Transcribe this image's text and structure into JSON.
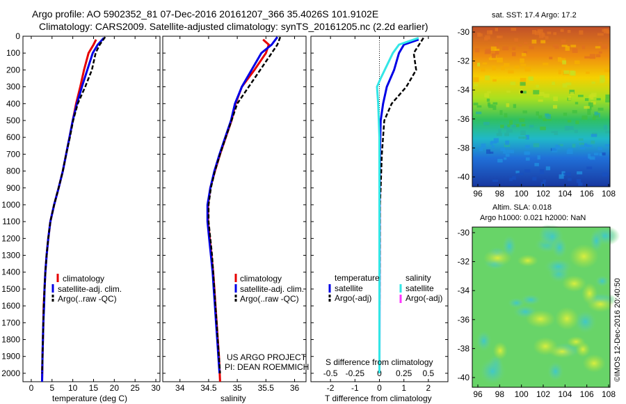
{
  "header": {
    "line1": "Argo profile: AO 5902352_81 07-Dec-2016 20161207_366 35.4026S 101.9102E",
    "line2": "Climatology: CARS2009. Satellite-adjusted climatology: synTS_20161205.nc (2.2d earlier)"
  },
  "colors": {
    "climatology": "#e60000",
    "satellite": "#0000e6",
    "argo": "#000000",
    "salinity_satellite": "#33e6e6",
    "salinity_argo": "#ff33ff"
  },
  "depth_axis": {
    "ticks": [
      "0",
      "100",
      "200",
      "300",
      "400",
      "500",
      "600",
      "700",
      "800",
      "900",
      "1000",
      "1100",
      "1200",
      "1300",
      "1400",
      "1500",
      "1600",
      "1700",
      "1800",
      "1900",
      "2000"
    ],
    "range": [
      0,
      2050
    ]
  },
  "chart_data": [
    {
      "type": "line",
      "xlabel": "temperature (deg C)",
      "xlim": [
        -2,
        31
      ],
      "xticks": [
        "0",
        "5",
        "10",
        "15",
        "20",
        "25",
        "30"
      ],
      "ylim": [
        0,
        2050
      ],
      "legend": [
        "climatology",
        "satellite-adj. clim.",
        "Argo(..raw -QC)"
      ],
      "series": [
        {
          "name": "climatology",
          "style": "solid",
          "color": "#e60000",
          "points": [
            [
              15.6,
              20
            ],
            [
              15,
              50
            ],
            [
              13.8,
              100
            ],
            [
              12.7,
              200
            ],
            [
              11.8,
              300
            ],
            [
              10.8,
              400
            ],
            [
              10,
              500
            ],
            [
              9.2,
              600
            ],
            [
              8.4,
              700
            ],
            [
              7.6,
              800
            ],
            [
              6.6,
              900
            ],
            [
              5.5,
              1000
            ],
            [
              4.6,
              1100
            ],
            [
              4.1,
              1200
            ],
            [
              3.7,
              1300
            ],
            [
              3.4,
              1400
            ],
            [
              3.2,
              1500
            ],
            [
              3,
              1600
            ],
            [
              2.9,
              1700
            ],
            [
              2.8,
              1800
            ],
            [
              2.7,
              1900
            ],
            [
              2.6,
              2050
            ]
          ]
        },
        {
          "name": "satellite-adj. clim.",
          "style": "solid",
          "color": "#0000e6",
          "points": [
            [
              17.5,
              10
            ],
            [
              16,
              50
            ],
            [
              14.8,
              100
            ],
            [
              13.5,
              200
            ],
            [
              12.2,
              300
            ],
            [
              11,
              400
            ],
            [
              10,
              500
            ],
            [
              9.2,
              600
            ],
            [
              8.4,
              700
            ],
            [
              7.6,
              800
            ],
            [
              6.6,
              900
            ],
            [
              5.5,
              1000
            ],
            [
              4.6,
              1100
            ],
            [
              4.1,
              1200
            ],
            [
              3.7,
              1300
            ],
            [
              3.4,
              1400
            ],
            [
              3.2,
              1500
            ],
            [
              3.1,
              1600
            ],
            [
              2.9,
              1700
            ],
            [
              2.8,
              1800
            ],
            [
              2.7,
              1900
            ],
            [
              2.6,
              2050
            ]
          ]
        },
        {
          "name": "Argo(..raw -QC)",
          "style": "dashed",
          "color": "#000000",
          "points": [
            [
              17.8,
              5
            ],
            [
              16.5,
              50
            ],
            [
              15.5,
              100
            ],
            [
              14.6,
              200
            ],
            [
              13,
              300
            ],
            [
              11.2,
              400
            ],
            [
              10.1,
              500
            ],
            [
              9.3,
              600
            ],
            [
              8.4,
              700
            ],
            [
              7.6,
              800
            ],
            [
              6.6,
              900
            ],
            [
              5.5,
              1000
            ],
            [
              4.6,
              1100
            ],
            [
              4.1,
              1200
            ],
            [
              3.7,
              1300
            ],
            [
              3.4,
              1400
            ],
            [
              3.2,
              1500
            ],
            [
              3,
              1600
            ],
            [
              2.9,
              1700
            ],
            [
              2.8,
              1800
            ],
            [
              2.7,
              1900
            ],
            [
              2.6,
              2000
            ]
          ]
        }
      ]
    },
    {
      "type": "line",
      "xlabel": "salinity",
      "xlim": [
        33.7,
        36.2
      ],
      "xticks": [
        "34",
        "34.5",
        "35",
        "35.5",
        "36"
      ],
      "ylim": [
        0,
        2050
      ],
      "legend": [
        "climatology",
        "satellite-adj. clim.",
        "Argo(..raw -QC)"
      ],
      "series": [
        {
          "name": "climatology",
          "style": "solid",
          "color": "#e60000",
          "points": [
            [
              35.45,
              20
            ],
            [
              35.55,
              50
            ],
            [
              35.5,
              100
            ],
            [
              35.3,
              200
            ],
            [
              35.08,
              300
            ],
            [
              34.97,
              400
            ],
            [
              34.9,
              500
            ],
            [
              34.8,
              600
            ],
            [
              34.7,
              700
            ],
            [
              34.61,
              800
            ],
            [
              34.53,
              900
            ],
            [
              34.49,
              1000
            ],
            [
              34.49,
              1100
            ],
            [
              34.52,
              1200
            ],
            [
              34.55,
              1300
            ],
            [
              34.58,
              1400
            ],
            [
              34.6,
              1500
            ],
            [
              34.62,
              1600
            ],
            [
              34.64,
              1700
            ],
            [
              34.66,
              1800
            ],
            [
              34.68,
              1900
            ],
            [
              34.7,
              2050
            ]
          ]
        },
        {
          "name": "satellite-adj. clim.",
          "style": "solid",
          "color": "#0000e6",
          "points": [
            [
              35.7,
              5
            ],
            [
              35.6,
              50
            ],
            [
              35.42,
              100
            ],
            [
              35.25,
              200
            ],
            [
              35.08,
              300
            ],
            [
              34.96,
              400
            ],
            [
              34.89,
              500
            ],
            [
              34.79,
              600
            ],
            [
              34.69,
              700
            ],
            [
              34.6,
              800
            ],
            [
              34.53,
              900
            ],
            [
              34.48,
              1000
            ],
            [
              34.48,
              1100
            ],
            [
              34.51,
              1200
            ],
            [
              34.54,
              1300
            ],
            [
              34.57,
              1400
            ],
            [
              34.59,
              1500
            ],
            [
              34.61,
              1600
            ],
            [
              34.63,
              1700
            ],
            [
              34.65,
              1800
            ],
            [
              34.67,
              1900
            ],
            [
              34.69,
              2000
            ]
          ]
        },
        {
          "name": "Argo(..raw -QC)",
          "style": "dashed",
          "color": "#000000",
          "points": [
            [
              35.75,
              5
            ],
            [
              35.7,
              50
            ],
            [
              35.6,
              100
            ],
            [
              35.4,
              200
            ],
            [
              35.2,
              300
            ],
            [
              35,
              400
            ],
            [
              34.9,
              500
            ],
            [
              34.8,
              600
            ],
            [
              34.7,
              700
            ],
            [
              34.61,
              800
            ],
            [
              34.54,
              900
            ],
            [
              34.5,
              1000
            ],
            [
              34.5,
              1100
            ],
            [
              34.53,
              1200
            ],
            [
              34.56,
              1300
            ],
            [
              34.58,
              1400
            ],
            [
              34.6,
              1500
            ],
            [
              34.62,
              1600
            ],
            [
              34.64,
              1700
            ],
            [
              34.66,
              1800
            ],
            [
              34.68,
              1900
            ],
            [
              34.7,
              2000
            ]
          ]
        }
      ]
    },
    {
      "type": "line",
      "xlabel": "T difference from climatology",
      "xlabel2": "S difference from climatology",
      "xlim": [
        -2.8,
        2.8
      ],
      "xticks": [
        "-2",
        "-1",
        "0",
        "1",
        "2"
      ],
      "xticks2": [
        "-0.5",
        "-0.25",
        "0",
        "0.25",
        "0.5"
      ],
      "ylim": [
        0,
        2050
      ],
      "legend_temperature_title": "temperature",
      "legend_salinity_title": "salinity",
      "legend_temperature": [
        "satellite",
        "Argo(-adj)"
      ],
      "legend_salinity": [
        "satellite",
        "Argo(-adj)"
      ],
      "series": [
        {
          "name": "temperature satellite",
          "style": "solid",
          "color": "#0000e6",
          "points": [
            [
              1.6,
              20
            ],
            [
              1,
              50
            ],
            [
              0.8,
              100
            ],
            [
              0.6,
              200
            ],
            [
              0.3,
              300
            ],
            [
              0.15,
              400
            ],
            [
              0.05,
              500
            ],
            [
              0.02,
              700
            ],
            [
              0.01,
              1000
            ],
            [
              0,
              2000
            ]
          ]
        },
        {
          "name": "temperature Argo(-adj)",
          "style": "dashed",
          "color": "#000000",
          "points": [
            [
              1.8,
              10
            ],
            [
              1.4,
              100
            ],
            [
              1.5,
              200
            ],
            [
              1.1,
              300
            ],
            [
              0.5,
              400
            ],
            [
              0.2,
              500
            ],
            [
              0.1,
              700
            ],
            [
              0.05,
              900
            ],
            [
              0.02,
              1000
            ],
            [
              0,
              2000
            ]
          ]
        },
        {
          "name": "salinity satellite",
          "style": "solid",
          "color": "#33e6e6",
          "points": [
            [
              1.6,
              10
            ],
            [
              0.8,
              50
            ],
            [
              0.55,
              100
            ],
            [
              0.05,
              250
            ],
            [
              -0.1,
              300
            ],
            [
              -0.05,
              400
            ],
            [
              0,
              600
            ],
            [
              0,
              1000
            ],
            [
              0,
              2000
            ]
          ]
        }
      ]
    }
  ],
  "notes": {
    "project": "US ARGO PROJECT",
    "pi": "PI: DEAN ROEMMICH"
  },
  "map_sst": {
    "title": "sat. SST: 17.4  Argo: 17.2",
    "yticks": [
      "-30",
      "-32",
      "-34",
      "-36",
      "-38",
      "-40"
    ],
    "xticks": [
      "96",
      "98",
      "100",
      "102",
      "104",
      "106",
      "108"
    ]
  },
  "map_sla": {
    "title1": "Altim. SLA: 0.018",
    "title2": "Argo h1000: 0.021 h2000: NaN",
    "yticks": [
      "-30",
      "-32",
      "-34",
      "-36",
      "-38",
      "-40"
    ],
    "xticks": [
      "96",
      "98",
      "100",
      "102",
      "104",
      "106",
      "108"
    ]
  },
  "footer": {
    "credit": "©IMOS 12-Dec-2016 20:40:50"
  }
}
